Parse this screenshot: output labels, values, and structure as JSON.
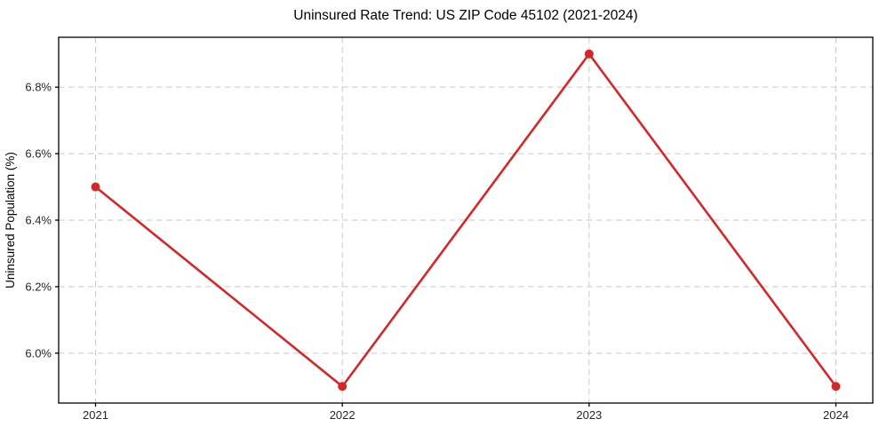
{
  "chart_data": {
    "type": "line",
    "title": "Uninsured Rate Trend: US ZIP Code 45102 (2021-2024)",
    "xlabel": "",
    "ylabel": "Uninsured Population (%)",
    "categories": [
      "2021",
      "2022",
      "2023",
      "2024"
    ],
    "values": [
      6.5,
      5.9,
      6.9,
      5.9
    ],
    "ytick_values": [
      6.0,
      6.2,
      6.4,
      6.6,
      6.8
    ],
    "ytick_labels": [
      "6.0%",
      "6.2%",
      "6.4%",
      "6.6%",
      "6.8%"
    ],
    "ylim": [
      5.85,
      6.95
    ],
    "grid": true,
    "grid_style": "dashed",
    "legend_position": "none",
    "marker": "circle",
    "colors": {
      "line": "#d62728",
      "marker": "#d62728",
      "grid": "#c9c9c9",
      "axis": "#000000",
      "tick_label": "#262626",
      "title": "#000000",
      "background": "#ffffff"
    }
  }
}
